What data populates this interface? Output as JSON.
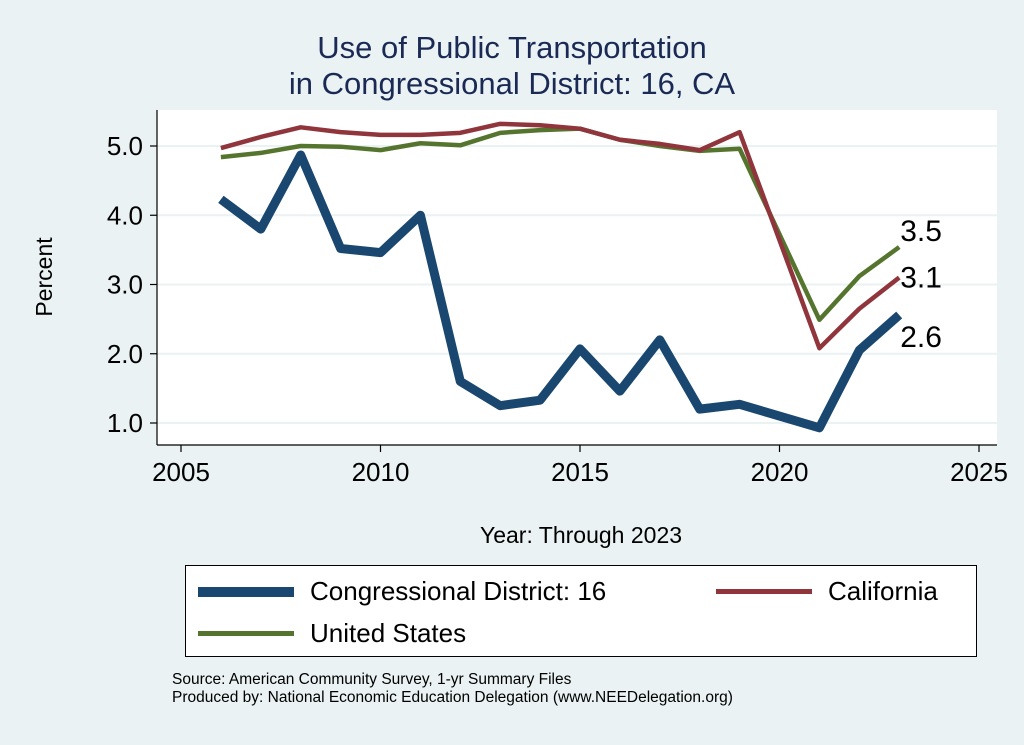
{
  "chart_data": {
    "type": "line",
    "title": "Use of Public Transportation",
    "subtitle": "in Congressional District: 16, CA",
    "xlabel": "Year: Through 2023",
    "ylabel": "Percent",
    "xlim": [
      2005,
      2025
    ],
    "ylim": [
      0.75,
      5.5
    ],
    "xticks": [
      2005,
      2010,
      2015,
      2020,
      2025
    ],
    "yticks": [
      1.0,
      2.0,
      3.0,
      4.0,
      5.0
    ],
    "ytick_labels": [
      "1.0",
      "2.0",
      "3.0",
      "4.0",
      "5.0"
    ],
    "grid": true,
    "legend_position": "bottom",
    "x": [
      2006,
      2007,
      2008,
      2009,
      2010,
      2011,
      2012,
      2013,
      2014,
      2015,
      2016,
      2017,
      2018,
      2019,
      2021,
      2022,
      2023
    ],
    "series": [
      {
        "name": "Congressional District: 16",
        "color": "#1a476f",
        "end_label": "2.6",
        "values": [
          4.23,
          3.8,
          4.87,
          3.52,
          3.46,
          4.0,
          1.6,
          1.25,
          1.33,
          2.07,
          1.46,
          2.2,
          1.2,
          1.27,
          0.93,
          2.05,
          2.56
        ]
      },
      {
        "name": "California",
        "color": "#90353b",
        "end_label": "3.1",
        "values": [
          4.97,
          5.13,
          5.27,
          5.2,
          5.16,
          5.16,
          5.19,
          5.32,
          5.3,
          5.25,
          5.09,
          5.03,
          4.94,
          5.2,
          2.08,
          2.65,
          3.1
        ]
      },
      {
        "name": "United States",
        "color": "#55752f",
        "end_label": "3.5",
        "values": [
          4.84,
          4.9,
          5.0,
          4.99,
          4.94,
          5.04,
          5.01,
          5.19,
          5.23,
          5.25,
          5.09,
          5.0,
          4.93,
          4.96,
          2.49,
          3.12,
          3.54
        ]
      }
    ]
  },
  "source": "Source: American Community Survey, 1-yr Summary Files",
  "producer": "Produced by: National Economic Education Delegation (www.NEEDelegation.org)"
}
